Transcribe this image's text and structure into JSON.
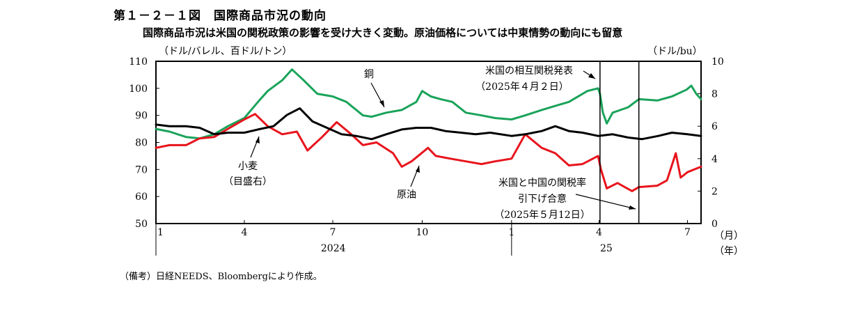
{
  "figure": {
    "title": "第１－２－１図　国際商品市況の動向",
    "subtitle": "国際商品市況は米国の関税政策の影響を受け大きく変動。原油価格については中東情勢の動向にも留意",
    "unit_left": "（ドル/バレル、百ドル/トン）",
    "unit_right": "（ドル/bu）",
    "source": "（備考）日経NEEDS、Bloombergにより作成。"
  },
  "chart_data": {
    "type": "line",
    "x_unit_label": "（月）",
    "year_unit_label": "（年）",
    "x_ticks": [
      {
        "label": "1",
        "date": "2024-01-01"
      },
      {
        "label": "4",
        "date": "2024-04-01"
      },
      {
        "label": "7",
        "date": "2024-07-01"
      },
      {
        "label": "10",
        "date": "2024-10-01"
      },
      {
        "label": "1",
        "date": "2025-01-01"
      },
      {
        "label": "4",
        "date": "2025-04-01"
      },
      {
        "label": "7",
        "date": "2025-07-01"
      }
    ],
    "years": [
      {
        "label": "2024",
        "start": "2024-01-01",
        "end": "2024-12-31"
      },
      {
        "label": "25",
        "start": "2025-01-01",
        "end": "2025-07-31"
      }
    ],
    "x_range": [
      "2024-01-01",
      "2025-07-15"
    ],
    "y_left": {
      "min": 50,
      "max": 110,
      "step": 10,
      "ticks": [
        "50",
        "60",
        "70",
        "80",
        "90",
        "100",
        "110"
      ]
    },
    "y_right": {
      "min": 0,
      "max": 10,
      "step": 2,
      "ticks": [
        "0",
        "2",
        "4",
        "6",
        "8",
        "10"
      ]
    },
    "colors": {
      "copper": "#1aa35a",
      "crude": "#e8141c",
      "wheat": "#000000"
    },
    "series": [
      {
        "name": "銅",
        "axis": "left",
        "color": "#1aa35a",
        "points": [
          [
            "2024-01-01",
            85
          ],
          [
            "2024-01-15",
            84
          ],
          [
            "2024-02-01",
            82
          ],
          [
            "2024-02-15",
            81.5
          ],
          [
            "2024-03-01",
            83
          ],
          [
            "2024-03-15",
            86
          ],
          [
            "2024-04-01",
            89
          ],
          [
            "2024-04-15",
            95
          ],
          [
            "2024-04-25",
            99
          ],
          [
            "2024-05-10",
            103
          ],
          [
            "2024-05-20",
            107
          ],
          [
            "2024-06-01",
            103
          ],
          [
            "2024-06-15",
            98
          ],
          [
            "2024-07-01",
            97
          ],
          [
            "2024-07-15",
            95
          ],
          [
            "2024-08-01",
            90
          ],
          [
            "2024-08-10",
            89.5
          ],
          [
            "2024-08-25",
            91
          ],
          [
            "2024-09-10",
            92
          ],
          [
            "2024-09-25",
            95
          ],
          [
            "2024-10-01",
            99
          ],
          [
            "2024-10-10",
            97
          ],
          [
            "2024-10-20",
            96
          ],
          [
            "2024-11-01",
            95
          ],
          [
            "2024-11-15",
            91
          ],
          [
            "2024-12-01",
            90
          ],
          [
            "2024-12-15",
            89
          ],
          [
            "2025-01-01",
            88.5
          ],
          [
            "2025-01-15",
            90
          ],
          [
            "2025-02-01",
            92
          ],
          [
            "2025-02-15",
            93.5
          ],
          [
            "2025-03-01",
            95
          ],
          [
            "2025-03-20",
            99
          ],
          [
            "2025-03-31",
            100
          ],
          [
            "2025-04-02",
            98
          ],
          [
            "2025-04-05",
            91
          ],
          [
            "2025-04-09",
            87
          ],
          [
            "2025-04-15",
            91
          ],
          [
            "2025-05-01",
            93
          ],
          [
            "2025-05-12",
            96
          ],
          [
            "2025-05-31",
            95.5
          ],
          [
            "2025-06-15",
            97
          ],
          [
            "2025-06-30",
            99.5
          ],
          [
            "2025-07-05",
            101
          ],
          [
            "2025-07-10",
            98
          ],
          [
            "2025-07-15",
            96
          ]
        ]
      },
      {
        "name": "原油",
        "axis": "left",
        "color": "#e8141c",
        "points": [
          [
            "2024-01-01",
            78
          ],
          [
            "2024-01-15",
            79
          ],
          [
            "2024-02-01",
            79
          ],
          [
            "2024-02-15",
            81.5
          ],
          [
            "2024-03-01",
            82
          ],
          [
            "2024-03-15",
            85
          ],
          [
            "2024-04-01",
            88.5
          ],
          [
            "2024-04-12",
            90.5
          ],
          [
            "2024-04-25",
            86
          ],
          [
            "2024-05-10",
            83
          ],
          [
            "2024-05-25",
            84
          ],
          [
            "2024-06-05",
            77
          ],
          [
            "2024-06-20",
            82
          ],
          [
            "2024-07-05",
            87.5
          ],
          [
            "2024-07-20",
            83
          ],
          [
            "2024-08-01",
            79
          ],
          [
            "2024-08-15",
            80
          ],
          [
            "2024-09-01",
            76
          ],
          [
            "2024-09-10",
            71
          ],
          [
            "2024-09-20",
            73
          ],
          [
            "2024-10-07",
            78
          ],
          [
            "2024-10-15",
            75
          ],
          [
            "2024-10-30",
            74
          ],
          [
            "2024-11-15",
            73
          ],
          [
            "2024-12-01",
            72
          ],
          [
            "2024-12-15",
            73
          ],
          [
            "2025-01-01",
            74
          ],
          [
            "2025-01-15",
            83
          ],
          [
            "2025-02-01",
            78
          ],
          [
            "2025-02-15",
            76
          ],
          [
            "2025-03-01",
            71.5
          ],
          [
            "2025-03-15",
            72
          ],
          [
            "2025-03-31",
            75
          ],
          [
            "2025-04-03",
            70
          ],
          [
            "2025-04-09",
            63
          ],
          [
            "2025-04-20",
            65
          ],
          [
            "2025-05-05",
            62
          ],
          [
            "2025-05-12",
            63.5
          ],
          [
            "2025-05-31",
            64
          ],
          [
            "2025-06-10",
            66
          ],
          [
            "2025-06-19",
            76
          ],
          [
            "2025-06-24",
            67
          ],
          [
            "2025-07-01",
            69
          ],
          [
            "2025-07-15",
            71
          ]
        ]
      },
      {
        "name": "小麦",
        "axis": "right",
        "color": "#000000",
        "points": [
          [
            "2024-01-01",
            6.1
          ],
          [
            "2024-01-15",
            6.0
          ],
          [
            "2024-02-01",
            6.0
          ],
          [
            "2024-02-15",
            5.9
          ],
          [
            "2024-03-01",
            5.5
          ],
          [
            "2024-03-15",
            5.6
          ],
          [
            "2024-04-01",
            5.6
          ],
          [
            "2024-04-15",
            5.8
          ],
          [
            "2024-05-01",
            6.0
          ],
          [
            "2024-05-15",
            6.7
          ],
          [
            "2024-05-28",
            7.1
          ],
          [
            "2024-06-10",
            6.3
          ],
          [
            "2024-06-25",
            5.9
          ],
          [
            "2024-07-10",
            5.5
          ],
          [
            "2024-07-25",
            5.4
          ],
          [
            "2024-08-10",
            5.2
          ],
          [
            "2024-08-25",
            5.5
          ],
          [
            "2024-09-10",
            5.8
          ],
          [
            "2024-09-25",
            5.9
          ],
          [
            "2024-10-10",
            5.9
          ],
          [
            "2024-10-25",
            5.7
          ],
          [
            "2024-11-10",
            5.6
          ],
          [
            "2024-11-25",
            5.5
          ],
          [
            "2024-12-10",
            5.6
          ],
          [
            "2025-01-01",
            5.4
          ],
          [
            "2025-01-15",
            5.5
          ],
          [
            "2025-02-01",
            5.7
          ],
          [
            "2025-02-15",
            6.0
          ],
          [
            "2025-03-01",
            5.7
          ],
          [
            "2025-03-15",
            5.6
          ],
          [
            "2025-03-31",
            5.4
          ],
          [
            "2025-04-15",
            5.5
          ],
          [
            "2025-05-01",
            5.3
          ],
          [
            "2025-05-15",
            5.2
          ],
          [
            "2025-06-01",
            5.4
          ],
          [
            "2025-06-15",
            5.6
          ],
          [
            "2025-07-01",
            5.5
          ],
          [
            "2025-07-15",
            5.4
          ]
        ]
      }
    ],
    "series_labels": [
      {
        "series": "銅",
        "text": "銅"
      },
      {
        "series": "小麦",
        "lines": [
          "小麦",
          "（目盛右）"
        ]
      },
      {
        "series": "原油",
        "text": "原油"
      }
    ],
    "events": [
      {
        "date": "2025-04-02",
        "lines": [
          "米国の相互関税発表",
          "（2025年４月２日）"
        ]
      },
      {
        "date": "2025-05-12",
        "lines": [
          "米国と中国の関税率",
          "引下げ合意",
          "（2025年５月12日）"
        ]
      }
    ]
  }
}
